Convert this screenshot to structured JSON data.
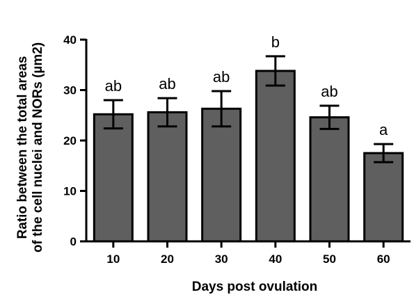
{
  "chart_data": {
    "type": "bar",
    "title": "",
    "xlabel": "Days post ovulation",
    "ylabel_lines": [
      "Ratio between the total areas",
      "of the cell nuclei and NORs (µm2)"
    ],
    "ylim": [
      0,
      40
    ],
    "yticks": [
      0,
      10,
      20,
      30,
      40
    ],
    "categories": [
      "10",
      "20",
      "30",
      "40",
      "50",
      "60"
    ],
    "values": [
      25.2,
      25.6,
      26.3,
      33.8,
      24.6,
      17.5
    ],
    "errors": [
      2.8,
      2.8,
      3.5,
      2.9,
      2.3,
      1.8
    ],
    "significance_labels": [
      "ab",
      "ab",
      "ab",
      "b",
      "ab",
      "a"
    ],
    "grid": false,
    "legend": "none",
    "colors": {
      "bar_fill": "#5f5f5f",
      "bar_stroke": "#000000",
      "axis": "#000000"
    }
  }
}
